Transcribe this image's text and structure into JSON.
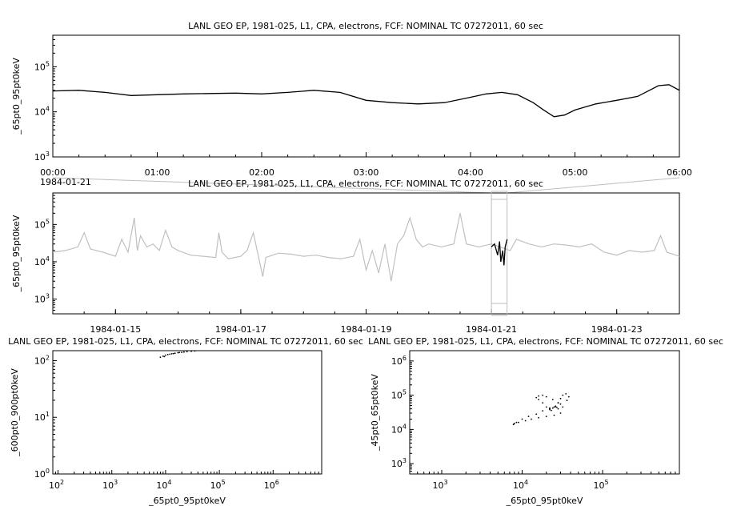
{
  "chart_data": [
    {
      "id": "top",
      "type": "line",
      "title": "LANL GEO EP, 1981-025, L1, CPA, electrons, FCF: NOMINAL TC 07272011, 60 sec",
      "ylabel": "_65pt0_95pt0keV",
      "yscale": "log",
      "ylim": [
        1000,
        500000
      ],
      "y_ticks": [
        {
          "v": 1000,
          "m": "3"
        },
        {
          "v": 10000,
          "m": "4"
        },
        {
          "v": 100000,
          "m": "5"
        }
      ],
      "x_unit": "hours",
      "xlim": [
        0,
        6
      ],
      "x_ticks": [
        {
          "v": 0,
          "label": "00:00"
        },
        {
          "v": 1,
          "label": "01:00"
        },
        {
          "v": 2,
          "label": "02:00"
        },
        {
          "v": 3,
          "label": "03:00"
        },
        {
          "v": 4,
          "label": "04:00"
        },
        {
          "v": 5,
          "label": "05:00"
        },
        {
          "v": 6,
          "label": "06:00"
        }
      ],
      "date_label": "1984-01-21",
      "series": [
        {
          "color": "#000000",
          "x": [
            0,
            0.25,
            0.5,
            0.75,
            1.0,
            1.25,
            1.5,
            1.75,
            2.0,
            2.25,
            2.5,
            2.75,
            3.0,
            3.25,
            3.5,
            3.75,
            4.0,
            4.15,
            4.3,
            4.45,
            4.6,
            4.7,
            4.8,
            4.9,
            5.0,
            5.2,
            5.4,
            5.6,
            5.8,
            5.9,
            6.0
          ],
          "y": [
            29000,
            30000,
            27000,
            23000,
            24000,
            25000,
            25500,
            26000,
            25000,
            27000,
            30000,
            27000,
            18000,
            16000,
            15000,
            16000,
            21000,
            25000,
            27000,
            24000,
            16000,
            11000,
            7800,
            8500,
            11000,
            15000,
            18000,
            22000,
            38000,
            40000,
            30000
          ]
        }
      ]
    },
    {
      "id": "middle",
      "type": "line",
      "title": "LANL GEO EP, 1981-025, L1, CPA, electrons, FCF: NOMINAL TC 07272011, 60 sec",
      "ylabel": "_65pt0_95pt0keV",
      "yscale": "log",
      "ylim": [
        400,
        700000
      ],
      "y_ticks": [
        {
          "v": 1000,
          "m": "3"
        },
        {
          "v": 10000,
          "m": "4"
        },
        {
          "v": 100000,
          "m": "5"
        }
      ],
      "x_unit": "days since 1984-01-14",
      "xlim": [
        0,
        10
      ],
      "x_ticks": [
        {
          "v": 1,
          "label": "1984-01-15"
        },
        {
          "v": 3,
          "label": "1984-01-17"
        },
        {
          "v": 5,
          "label": "1984-01-19"
        },
        {
          "v": 7,
          "label": "1984-01-21"
        },
        {
          "v": 9,
          "label": "1984-01-23"
        }
      ],
      "highlight_range": [
        7.0,
        7.25
      ],
      "series": [
        {
          "name": "context",
          "color": "#c0c0c0",
          "x": [
            0,
            0.2,
            0.4,
            0.5,
            0.6,
            0.8,
            1.0,
            1.1,
            1.2,
            1.3,
            1.35,
            1.4,
            1.5,
            1.6,
            1.7,
            1.8,
            1.9,
            2.0,
            2.2,
            2.4,
            2.6,
            2.65,
            2.7,
            2.8,
            3.0,
            3.1,
            3.2,
            3.3,
            3.35,
            3.4,
            3.6,
            3.8,
            4.0,
            4.2,
            4.4,
            4.6,
            4.8,
            4.9,
            5.0,
            5.1,
            5.2,
            5.3,
            5.4,
            5.5,
            5.6,
            5.7,
            5.8,
            5.9,
            6.0,
            6.2,
            6.4,
            6.5,
            6.6,
            6.8,
            7.0,
            7.3,
            7.4,
            7.6,
            7.8,
            8.0,
            8.2,
            8.4,
            8.6,
            8.8,
            9.0,
            9.2,
            9.4,
            9.6,
            9.7,
            9.8,
            10.0
          ],
          "y": [
            18000,
            20000,
            25000,
            60000,
            22000,
            18000,
            14000,
            40000,
            18000,
            150000,
            20000,
            50000,
            25000,
            30000,
            20000,
            70000,
            25000,
            20000,
            15000,
            14000,
            13000,
            60000,
            18000,
            12000,
            14000,
            20000,
            60000,
            10000,
            4000,
            13000,
            17000,
            16000,
            14000,
            15000,
            13000,
            12000,
            14000,
            40000,
            6000,
            20000,
            5000,
            30000,
            3000,
            30000,
            50000,
            150000,
            40000,
            25000,
            30000,
            25000,
            30000,
            200000,
            30000,
            25000,
            30000,
            20000,
            40000,
            30000,
            25000,
            30000,
            28000,
            25000,
            30000,
            18000,
            15000,
            20000,
            18000,
            20000,
            50000,
            18000,
            14000
          ]
        },
        {
          "name": "selection",
          "color": "#000000",
          "x": [
            7.0,
            7.05,
            7.1,
            7.13,
            7.15,
            7.18,
            7.2,
            7.22,
            7.25
          ],
          "y": [
            25000,
            30000,
            15000,
            35000,
            10000,
            20000,
            8000,
            25000,
            40000
          ]
        }
      ]
    },
    {
      "id": "bottom-left",
      "type": "scatter",
      "title": "LANL GEO EP, 1981-025, L1, CPA, electrons, FCF: NOMINAL TC 07272011, 60 sec",
      "xlabel": "_65pt0_95pt0keV",
      "ylabel": "_600pt0_900pt0keV",
      "xscale": "log",
      "yscale": "log",
      "xlim": [
        80,
        8000000
      ],
      "ylim": [
        1,
        150
      ],
      "x_ticks": [
        {
          "v": 100,
          "m": "2"
        },
        {
          "v": 1000,
          "m": "3"
        },
        {
          "v": 10000,
          "m": "4"
        },
        {
          "v": 100000,
          "m": "5"
        },
        {
          "v": 1000000,
          "m": "6"
        }
      ],
      "y_ticks": [
        {
          "v": 1,
          "m": "0"
        },
        {
          "v": 10,
          "m": "1"
        },
        {
          "v": 100,
          "m": "2"
        }
      ],
      "points": {
        "color": "#000000",
        "x": [
          8000,
          9000,
          10000,
          11000,
          12000,
          13000,
          15000,
          17000,
          20000,
          22000,
          25000,
          30000,
          35000,
          9500,
          14000,
          18000
        ],
        "y": [
          115,
          120,
          125,
          128,
          130,
          132,
          135,
          138,
          140,
          142,
          144,
          146,
          148,
          118,
          133,
          139
        ]
      }
    },
    {
      "id": "bottom-right",
      "type": "scatter",
      "title": "LANL GEO EP, 1981-025, L1, CPA, electrons, FCF: NOMINAL TC 07272011, 60 sec",
      "xlabel": "_65pt0_95pt0keV",
      "ylabel": "_45pt0_65pt0keV",
      "xscale": "log",
      "yscale": "log",
      "xlim": [
        400,
        900000
      ],
      "ylim": [
        500,
        2000000
      ],
      "x_ticks": [
        {
          "v": 1000,
          "m": "3"
        },
        {
          "v": 10000,
          "m": "4"
        },
        {
          "v": 100000,
          "m": "5"
        }
      ],
      "y_ticks": [
        {
          "v": 1000,
          "m": "3"
        },
        {
          "v": 10000,
          "m": "4"
        },
        {
          "v": 100000,
          "m": "5"
        },
        {
          "v": 1000000,
          "m": "6"
        }
      ],
      "points": {
        "color": "#000000",
        "x": [
          7800,
          8500,
          10000,
          12000,
          15000,
          18000,
          22000,
          26000,
          28000,
          30000,
          32000,
          35000,
          38000,
          36000,
          30000,
          25000,
          22000,
          20000,
          18000,
          16000,
          15000,
          16000,
          18000,
          20000,
          24000,
          28000,
          32000,
          30000,
          25000,
          20000,
          16000,
          13000,
          11000,
          9000,
          8000,
          7800,
          22000,
          24000,
          26000,
          28000,
          23000,
          27000
        ],
        "y": [
          14000,
          16000,
          20000,
          24000,
          28000,
          35000,
          40000,
          48000,
          60000,
          80000,
          100000,
          110000,
          90000,
          70000,
          55000,
          45000,
          42000,
          45000,
          60000,
          75000,
          85000,
          95000,
          100000,
          90000,
          75000,
          60000,
          45000,
          30000,
          26000,
          24000,
          22000,
          20000,
          18000,
          16000,
          15000,
          14000,
          38000,
          42000,
          46000,
          40000,
          36000,
          44000
        ]
      }
    }
  ]
}
